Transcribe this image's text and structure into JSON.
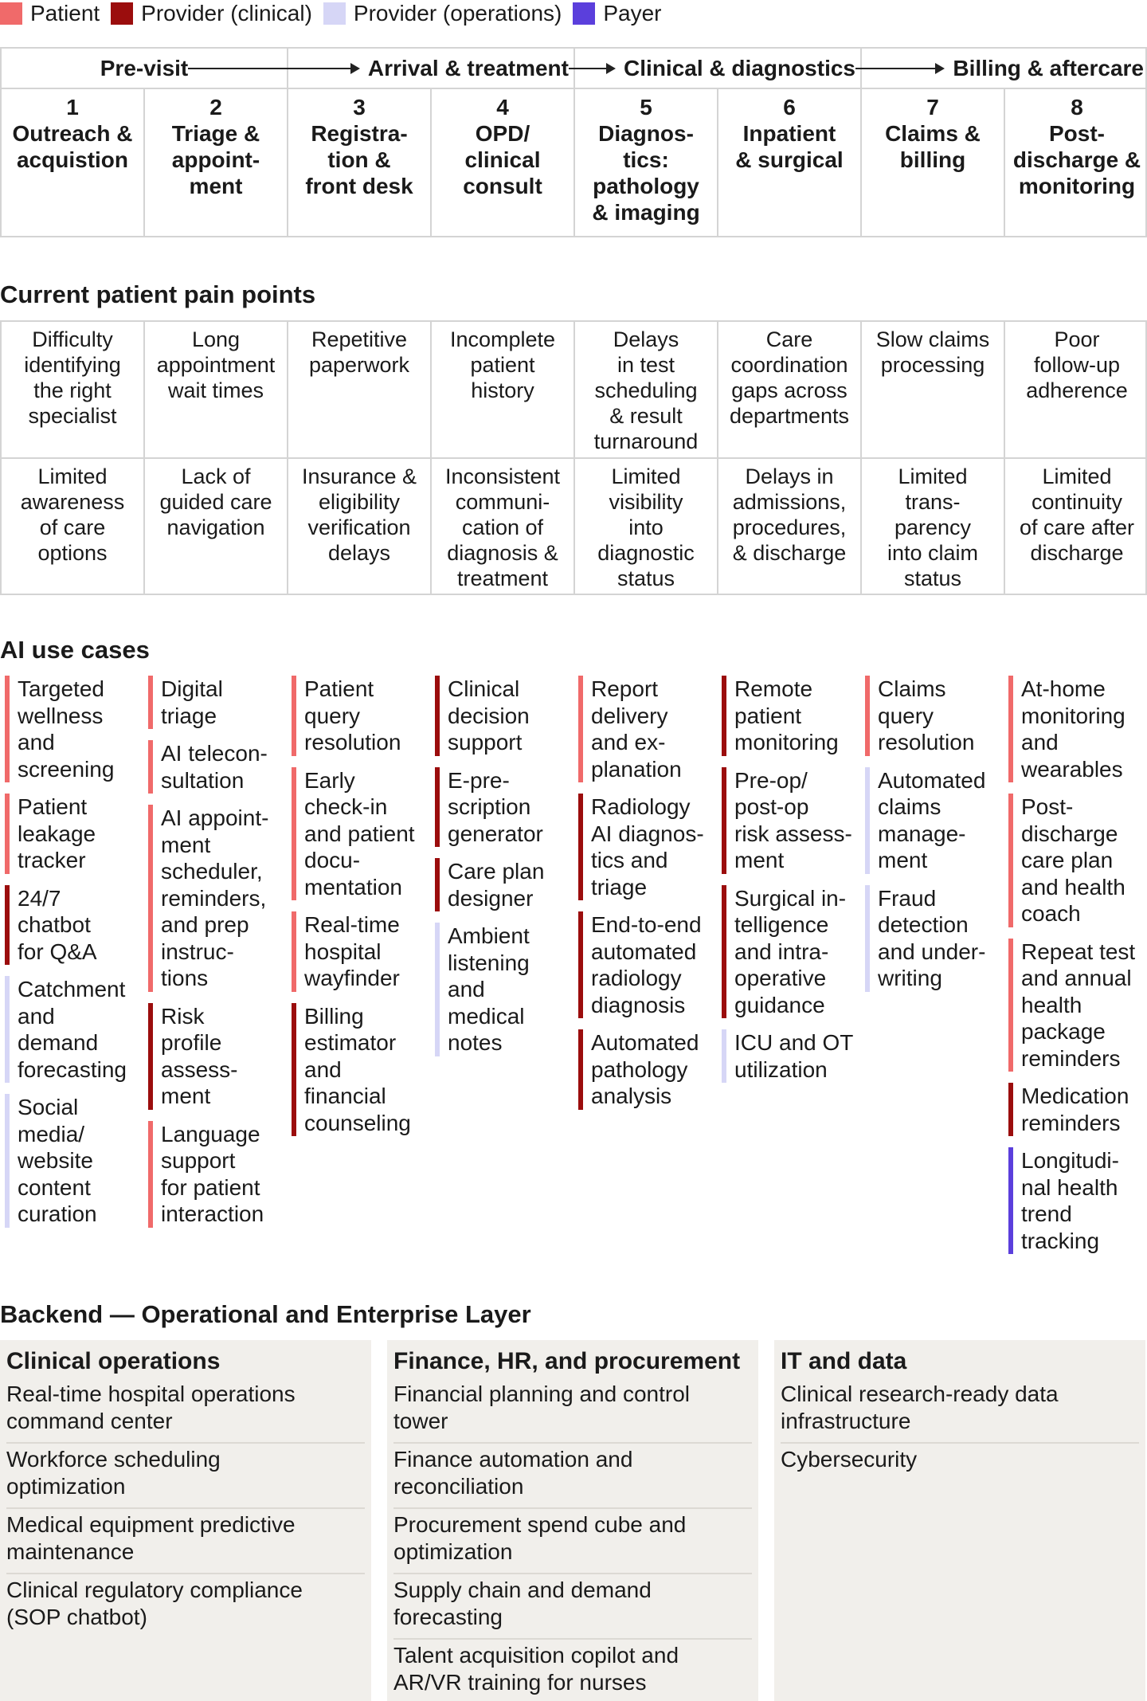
{
  "legend": [
    {
      "label": "Patient",
      "color": "#f06a6a",
      "icon": "patient-swatch"
    },
    {
      "label": "Provider (clinical)",
      "color": "#9b0d0d",
      "icon": "clinical-swatch"
    },
    {
      "label": "Provider (operations)",
      "color": "#d6d6f6",
      "icon": "operations-swatch"
    },
    {
      "label": "Payer",
      "color": "#5b3fdc",
      "icon": "payer-swatch"
    }
  ],
  "phases": [
    {
      "label": "Pre-visit"
    },
    {
      "label": "Arrival & treatment"
    },
    {
      "label": "Clinical & diagnostics"
    },
    {
      "label": "Billing & aftercare"
    }
  ],
  "stages": [
    {
      "num": "1",
      "lines": [
        "Outreach &",
        "acquistion"
      ]
    },
    {
      "num": "2",
      "lines": [
        "Triage &",
        "appoint-",
        "ment"
      ]
    },
    {
      "num": "3",
      "lines": [
        "Registra-",
        "tion &",
        "front desk"
      ]
    },
    {
      "num": "4",
      "lines": [
        "OPD/",
        "clinical",
        "consult"
      ]
    },
    {
      "num": "5",
      "lines": [
        "Diagnos-",
        "tics:",
        "pathology",
        "& imaging"
      ]
    },
    {
      "num": "6",
      "lines": [
        "Inpatient",
        "& surgical"
      ]
    },
    {
      "num": "7",
      "lines": [
        "Claims &",
        "billing"
      ]
    },
    {
      "num": "8",
      "lines": [
        "Post-",
        "discharge &",
        "monitoring"
      ]
    }
  ],
  "pain_title": "Current patient pain points",
  "pain_rows": [
    [
      [
        "Difficulty",
        "identifying",
        "the right",
        "specialist"
      ],
      [
        "Long",
        "appointment",
        "wait times"
      ],
      [
        "Repetitive",
        "paperwork"
      ],
      [
        "Incomplete",
        "patient",
        "history"
      ],
      [
        "Delays",
        "in test",
        "scheduling",
        "& result",
        "turnaround"
      ],
      [
        "Care",
        "coordination",
        "gaps across",
        "departments"
      ],
      [
        "Slow claims",
        "processing"
      ],
      [
        "Poor",
        "follow-up",
        "adherence"
      ]
    ],
    [
      [
        "Limited",
        "awareness",
        "of care",
        "options"
      ],
      [
        "Lack of",
        "guided care",
        "navigation"
      ],
      [
        "Insurance &",
        "eligibility",
        "verification",
        "delays"
      ],
      [
        "Inconsistent",
        "communi-",
        "cation of",
        "diagnosis &",
        "treatment"
      ],
      [
        "Limited",
        "visibility",
        "into",
        "diagnostic",
        "status"
      ],
      [
        "Delays in",
        "admissions,",
        "procedures,",
        "& discharge"
      ],
      [
        "Limited",
        "trans-",
        "parency",
        "into claim",
        "status"
      ],
      [
        "Limited",
        "continuity",
        "of care after",
        "discharge"
      ]
    ]
  ],
  "usecases_title": "AI use cases",
  "usecases": [
    [
      {
        "type": "patient",
        "lines": [
          "Targeted",
          "wellness",
          "and",
          "screening"
        ]
      },
      {
        "type": "patient",
        "lines": [
          "Patient",
          "leakage",
          "tracker"
        ]
      },
      {
        "type": "clinical",
        "lines": [
          "24/7",
          "chatbot",
          "for Q&A"
        ]
      },
      {
        "type": "ops",
        "lines": [
          "Catchment",
          "and",
          "demand",
          "forecasting"
        ]
      },
      {
        "type": "ops",
        "lines": [
          "Social",
          "media/",
          "website",
          "content",
          "curation"
        ]
      }
    ],
    [
      {
        "type": "patient",
        "lines": [
          "Digital",
          "triage"
        ]
      },
      {
        "type": "patient",
        "lines": [
          "AI telecon-",
          "sultation"
        ]
      },
      {
        "type": "patient",
        "lines": [
          "AI appoint-",
          "ment",
          "scheduler,",
          "reminders,",
          "and prep",
          "instruc-",
          "tions"
        ]
      },
      {
        "type": "clinical",
        "lines": [
          "Risk",
          "profile",
          "assess-",
          "ment"
        ]
      },
      {
        "type": "patient",
        "lines": [
          "Language",
          "support",
          "for patient",
          "interaction"
        ]
      }
    ],
    [
      {
        "type": "patient",
        "lines": [
          "Patient",
          "query",
          "resolution"
        ]
      },
      {
        "type": "patient",
        "lines": [
          "Early",
          "check-in",
          "and patient",
          "docu-",
          "mentation"
        ]
      },
      {
        "type": "patient",
        "lines": [
          "Real-time",
          "hospital",
          "wayfinder"
        ]
      },
      {
        "type": "clinical",
        "lines": [
          "Billing",
          "estimator",
          "and",
          "financial",
          "counseling"
        ]
      }
    ],
    [
      {
        "type": "clinical",
        "lines": [
          "Clinical",
          "decision",
          "support"
        ]
      },
      {
        "type": "clinical",
        "lines": [
          "E-pre-",
          "scription",
          "generator"
        ]
      },
      {
        "type": "clinical",
        "lines": [
          "Care plan",
          "designer"
        ]
      },
      {
        "type": "ops",
        "lines": [
          "Ambient",
          "listening",
          "and",
          "medical",
          "notes"
        ]
      }
    ],
    [
      {
        "type": "patient",
        "lines": [
          "Report",
          "delivery",
          "and ex-",
          "planation"
        ]
      },
      {
        "type": "clinical",
        "lines": [
          "Radiology",
          "AI diagnos-",
          "tics and",
          "triage"
        ]
      },
      {
        "type": "clinical",
        "lines": [
          "End-to-end",
          "automated",
          "radiology",
          "diagnosis"
        ]
      },
      {
        "type": "clinical",
        "lines": [
          "Automated",
          "pathology",
          "analysis"
        ]
      }
    ],
    [
      {
        "type": "clinical",
        "lines": [
          "Remote",
          "patient",
          "monitoring"
        ]
      },
      {
        "type": "clinical",
        "lines": [
          "Pre-op/",
          "post-op",
          "risk assess-",
          "ment"
        ]
      },
      {
        "type": "clinical",
        "lines": [
          "Surgical in-",
          "telligence",
          "and intra-",
          "operative",
          "guidance"
        ]
      },
      {
        "type": "ops",
        "lines": [
          "ICU and OT",
          "utilization"
        ]
      }
    ],
    [
      {
        "type": "patient",
        "lines": [
          "Claims",
          "query",
          "resolution"
        ]
      },
      {
        "type": "ops",
        "lines": [
          "Automated",
          "claims",
          "manage-",
          "ment"
        ]
      },
      {
        "type": "ops",
        "lines": [
          "Fraud",
          "detection",
          "and under-",
          "writing"
        ]
      }
    ],
    [
      {
        "type": "patient",
        "lines": [
          "At-home",
          "monitoring",
          "and",
          "wearables"
        ]
      },
      {
        "type": "patient",
        "lines": [
          "Post-",
          "discharge",
          "care plan",
          "and health",
          "coach"
        ]
      },
      {
        "type": "patient",
        "lines": [
          "Repeat test",
          "and annual",
          "health",
          "package",
          "reminders"
        ]
      },
      {
        "type": "clinical",
        "lines": [
          "Medication",
          "reminders"
        ]
      },
      {
        "type": "payer",
        "lines": [
          "Longitudi-",
          "nal health",
          "trend",
          "tracking"
        ]
      }
    ]
  ],
  "backend_title": "Backend — Operational and Enterprise Layer",
  "backend": [
    {
      "title": "Clinical operations",
      "items": [
        [
          "Real-time hospital operations",
          "command center"
        ],
        [
          "Workforce scheduling",
          "optimization"
        ],
        [
          "Medical equipment predictive",
          "maintenance"
        ],
        [
          "Clinical regulatory compliance",
          "(SOP chatbot)"
        ]
      ]
    },
    {
      "title": "Finance, HR, and procurement",
      "items": [
        [
          "Financial planning and control",
          "tower"
        ],
        [
          "Finance automation and",
          "reconciliation"
        ],
        [
          "Procurement spend cube and",
          "optimization"
        ],
        [
          "Supply chain and demand",
          "forecasting"
        ],
        [
          "Talent acquisition copilot and",
          "AR/VR training for nurses"
        ]
      ]
    },
    {
      "title": "IT and data",
      "items": [
        [
          "Clinical research-ready data",
          "infrastructure"
        ],
        [
          "Cybersecurity"
        ]
      ]
    }
  ]
}
